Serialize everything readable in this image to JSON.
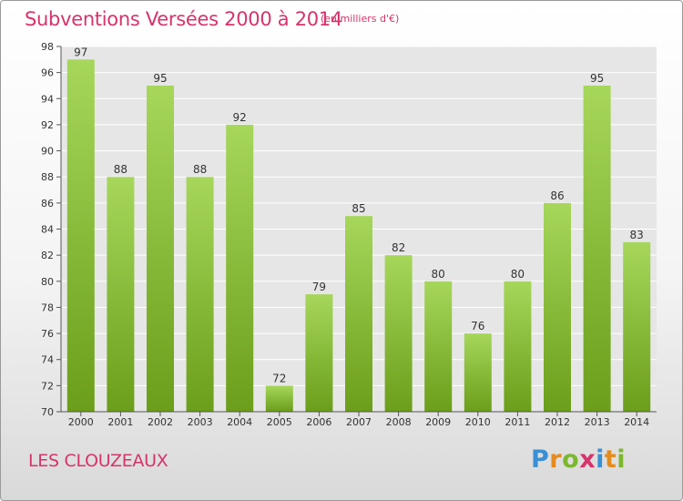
{
  "header": {
    "title": "Subventions Versées 2000 à 2014",
    "unit": "(en milliers d'€)"
  },
  "footer": {
    "commune": "LES CLOUZEAUX"
  },
  "logo": {
    "letters": [
      "P",
      "r",
      "o",
      "x",
      "i",
      "t",
      "i"
    ],
    "colors": [
      "#3a8fd6",
      "#e58a1c",
      "#7ab82d",
      "#d6336c",
      "#3a8fd6",
      "#e58a1c",
      "#7ab82d"
    ]
  },
  "chart_data": {
    "type": "bar",
    "title": "Subventions Versées 2000 à 2014",
    "xlabel": "",
    "ylabel": "",
    "categories": [
      "2000",
      "2001",
      "2002",
      "2003",
      "2004",
      "2005",
      "2006",
      "2007",
      "2008",
      "2009",
      "2010",
      "2011",
      "2012",
      "2013",
      "2014"
    ],
    "values": [
      97,
      88,
      95,
      88,
      92,
      72,
      79,
      85,
      82,
      80,
      76,
      80,
      86,
      95,
      83
    ],
    "ylim": [
      70,
      98
    ],
    "yticks": [
      70,
      72,
      74,
      76,
      78,
      80,
      82,
      84,
      86,
      88,
      90,
      92,
      94,
      96,
      98
    ],
    "grid": true,
    "colors": {
      "bar_top": "#a6d75b",
      "bar_bottom": "#6b9e1a",
      "label": "#333333"
    }
  }
}
